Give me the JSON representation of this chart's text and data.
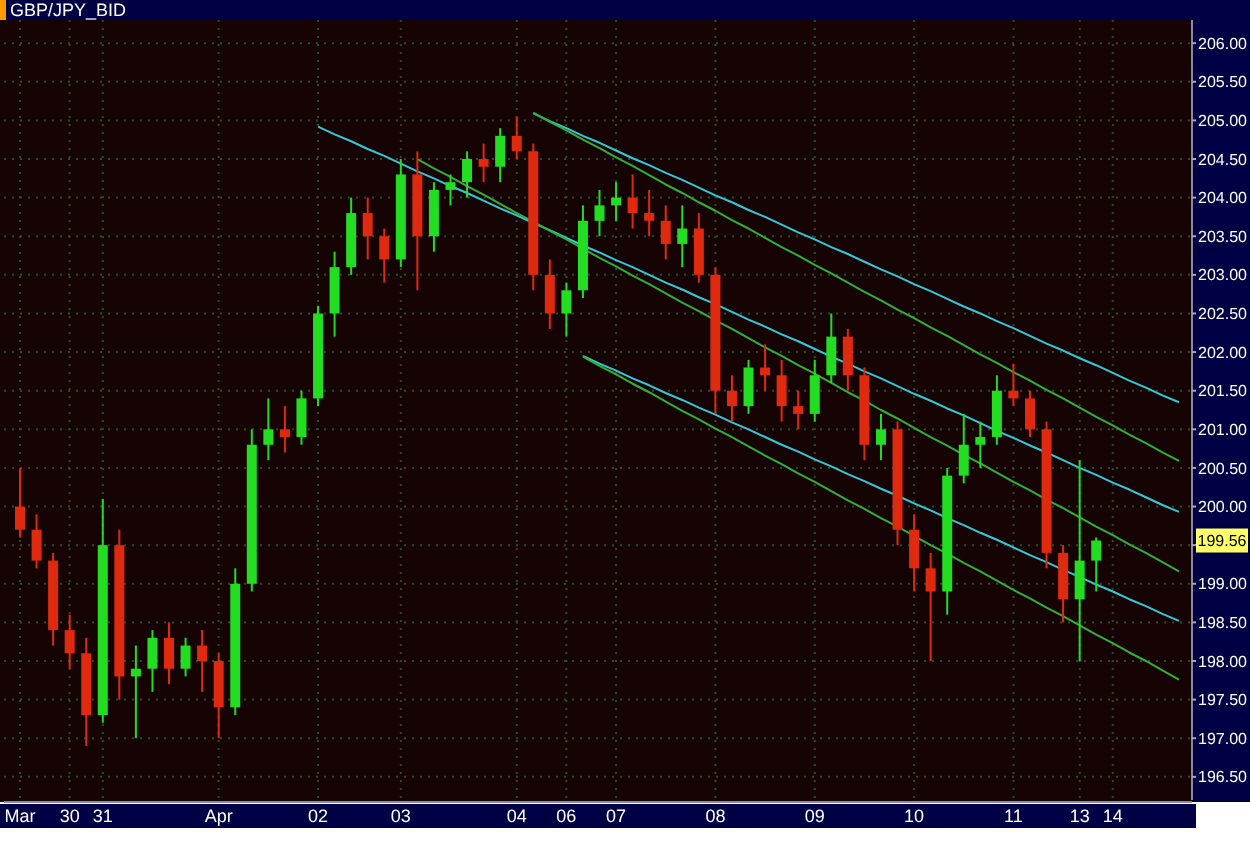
{
  "chart_data": {
    "type": "candlestick",
    "title": "GBP/JPY_BID",
    "categories": [
      "Mar",
      null,
      null,
      "30",
      null,
      "31",
      null,
      null,
      null,
      null,
      null,
      null,
      "Apr",
      null,
      null,
      null,
      null,
      null,
      "02",
      null,
      null,
      null,
      null,
      "03",
      null,
      null,
      null,
      null,
      null,
      null,
      "04",
      null,
      null,
      "06",
      null,
      null,
      "07",
      null,
      null,
      null,
      null,
      null,
      "08",
      null,
      null,
      null,
      null,
      null,
      "09",
      null,
      null,
      null,
      null,
      null,
      "10",
      null,
      null,
      null,
      null,
      null,
      "11",
      null,
      null,
      null,
      "13",
      null,
      "14",
      null,
      null,
      null,
      null
    ],
    "colors": [
      "#e02a10",
      "#e02a10",
      "#e02a10",
      "#e02a10",
      "#e02a10",
      "#22dd22",
      "#e02a10",
      "#22dd22",
      "#22dd22",
      "#e02a10",
      "#22dd22",
      "#e02a10",
      "#e02a10",
      "#22dd22",
      "#22dd22",
      "#22dd22",
      "#e02a10",
      "#22dd22",
      "#22dd22",
      "#22dd22",
      "#22dd22",
      "#e02a10",
      "#e02a10",
      "#22dd22",
      "#e02a10",
      "#22dd22",
      "#22dd22",
      "#22dd22",
      "#e02a10",
      "#22dd22",
      "#e02a10",
      "#e02a10",
      "#e02a10",
      "#22dd22",
      "#22dd22",
      "#22dd22",
      "#22dd22",
      "#e02a10",
      "#e02a10",
      "#e02a10",
      "#22dd22",
      "#e02a10",
      "#e02a10",
      "#e02a10",
      "#22dd22",
      "#e02a10",
      "#e02a10",
      "#e02a10",
      "#22dd22",
      "#22dd22",
      "#e02a10",
      "#e02a10",
      "#22dd22",
      "#e02a10",
      "#e02a10",
      "#e02a10",
      "#22dd22",
      "#22dd22",
      "#22dd22",
      "#22dd22",
      "#e02a10",
      "#e02a10",
      "#e02a10",
      "#e02a10",
      "#22dd22",
      "#22dd22",
      null,
      null,
      null,
      null,
      null
    ],
    "ohlc": [
      [
        200.0,
        200.5,
        199.6,
        199.7
      ],
      [
        199.7,
        199.9,
        199.2,
        199.3
      ],
      [
        199.3,
        199.4,
        198.2,
        198.4
      ],
      [
        198.4,
        198.6,
        197.9,
        198.1
      ],
      [
        198.1,
        198.3,
        196.9,
        197.3
      ],
      [
        197.3,
        200.1,
        197.2,
        199.5
      ],
      [
        199.5,
        199.7,
        197.5,
        197.8
      ],
      [
        197.8,
        198.2,
        197.0,
        197.9
      ],
      [
        197.9,
        198.4,
        197.6,
        198.3
      ],
      [
        198.3,
        198.5,
        197.7,
        197.9
      ],
      [
        197.9,
        198.3,
        197.8,
        198.2
      ],
      [
        198.2,
        198.4,
        197.6,
        198.0
      ],
      [
        198.0,
        198.1,
        197.0,
        197.4
      ],
      [
        197.4,
        199.2,
        197.3,
        199.0
      ],
      [
        199.0,
        201.0,
        198.9,
        200.8
      ],
      [
        200.8,
        201.4,
        200.6,
        201.0
      ],
      [
        201.0,
        201.3,
        200.7,
        200.9
      ],
      [
        200.9,
        201.5,
        200.8,
        201.4
      ],
      [
        201.4,
        202.6,
        201.3,
        202.5
      ],
      [
        202.5,
        203.3,
        202.2,
        203.1
      ],
      [
        203.1,
        204.0,
        203.0,
        203.8
      ],
      [
        203.8,
        204.0,
        203.2,
        203.5
      ],
      [
        203.5,
        203.6,
        202.9,
        203.2
      ],
      [
        203.2,
        204.5,
        203.1,
        204.3
      ],
      [
        204.3,
        204.6,
        202.8,
        203.5
      ],
      [
        203.5,
        204.2,
        203.3,
        204.1
      ],
      [
        204.1,
        204.3,
        203.9,
        204.2
      ],
      [
        204.2,
        204.6,
        204.0,
        204.5
      ],
      [
        204.5,
        204.7,
        204.2,
        204.4
      ],
      [
        204.4,
        204.9,
        204.2,
        204.8
      ],
      [
        204.8,
        205.05,
        204.5,
        204.6
      ],
      [
        204.6,
        204.7,
        202.8,
        203.0
      ],
      [
        203.0,
        203.2,
        202.3,
        202.5
      ],
      [
        202.5,
        202.9,
        202.2,
        202.8
      ],
      [
        202.8,
        203.9,
        202.7,
        203.7
      ],
      [
        203.7,
        204.1,
        203.5,
        203.9
      ],
      [
        203.9,
        204.2,
        203.7,
        204.0
      ],
      [
        204.0,
        204.3,
        203.6,
        203.8
      ],
      [
        203.8,
        204.1,
        203.5,
        203.7
      ],
      [
        203.7,
        203.9,
        203.2,
        203.4
      ],
      [
        203.4,
        203.9,
        203.1,
        203.6
      ],
      [
        203.6,
        203.8,
        202.9,
        203.0
      ],
      [
        203.0,
        203.1,
        201.2,
        201.5
      ],
      [
        201.5,
        201.7,
        201.1,
        201.3
      ],
      [
        201.3,
        201.9,
        201.2,
        201.8
      ],
      [
        201.8,
        202.1,
        201.5,
        201.7
      ],
      [
        201.7,
        201.9,
        201.1,
        201.3
      ],
      [
        201.3,
        201.5,
        201.0,
        201.2
      ],
      [
        201.2,
        201.9,
        201.1,
        201.7
      ],
      [
        201.7,
        202.5,
        201.6,
        202.2
      ],
      [
        202.2,
        202.3,
        201.5,
        201.7
      ],
      [
        201.7,
        201.8,
        200.6,
        200.8
      ],
      [
        200.8,
        201.2,
        200.6,
        201.0
      ],
      [
        201.0,
        201.1,
        199.5,
        199.7
      ],
      [
        199.7,
        199.9,
        198.9,
        199.2
      ],
      [
        199.2,
        199.4,
        198.0,
        198.9
      ],
      [
        198.9,
        200.5,
        198.6,
        200.4
      ],
      [
        200.4,
        201.2,
        200.3,
        200.8
      ],
      [
        200.8,
        201.1,
        200.5,
        200.9
      ],
      [
        200.9,
        201.7,
        200.8,
        201.5
      ],
      [
        201.5,
        201.85,
        201.3,
        201.4
      ],
      [
        201.4,
        201.5,
        200.9,
        201.0
      ],
      [
        201.0,
        201.1,
        199.2,
        199.4
      ],
      [
        199.4,
        199.5,
        198.5,
        198.8
      ],
      [
        198.8,
        200.6,
        198.0,
        199.3
      ],
      [
        199.3,
        199.6,
        198.9,
        199.56
      ],
      null,
      null,
      null,
      null,
      null
    ],
    "series": [
      {
        "type": "line",
        "color": "#33c8d8",
        "values": [
          null,
          null,
          null,
          null,
          null,
          null,
          null,
          null,
          null,
          null,
          null,
          null,
          null,
          null,
          null,
          null,
          null,
          null,
          null,
          null,
          null,
          null,
          null,
          null,
          null,
          null,
          null,
          null,
          null,
          null,
          null,
          205.09,
          204.99,
          204.9,
          204.8,
          204.71,
          204.61,
          204.51,
          204.42,
          204.32,
          204.23,
          204.13,
          204.03,
          203.94,
          203.84,
          203.75,
          203.65,
          203.55,
          203.46,
          203.36,
          203.27,
          203.17,
          203.07,
          202.98,
          202.88,
          202.79,
          202.69,
          202.59,
          202.5,
          202.4,
          202.31,
          202.21,
          202.11,
          202.02,
          201.92,
          201.83,
          201.73,
          201.63,
          201.54,
          201.44,
          201.35
        ]
      },
      {
        "type": "line",
        "color": "#33b033",
        "values": [
          null,
          null,
          null,
          null,
          null,
          null,
          null,
          null,
          null,
          null,
          null,
          null,
          null,
          null,
          null,
          null,
          null,
          null,
          null,
          null,
          null,
          null,
          null,
          null,
          null,
          null,
          null,
          null,
          null,
          null,
          null,
          205.1,
          204.98,
          204.87,
          204.75,
          204.64,
          204.52,
          204.41,
          204.29,
          204.17,
          204.06,
          203.94,
          203.83,
          203.71,
          203.6,
          203.48,
          203.36,
          203.25,
          203.13,
          203.02,
          202.9,
          202.78,
          202.67,
          202.55,
          202.44,
          202.32,
          202.21,
          202.09,
          201.97,
          201.86,
          201.74,
          201.63,
          201.51,
          201.4,
          201.28,
          201.16,
          201.05,
          200.93,
          200.82,
          200.7,
          200.59
        ]
      },
      {
        "type": "line",
        "color": "#33c8d8",
        "values": [
          null,
          null,
          null,
          null,
          null,
          null,
          null,
          null,
          null,
          null,
          null,
          null,
          null,
          null,
          null,
          null,
          null,
          null,
          204.92,
          204.82,
          204.73,
          204.63,
          204.54,
          204.44,
          204.34,
          204.25,
          204.15,
          204.06,
          203.96,
          203.86,
          203.77,
          203.67,
          203.58,
          203.48,
          203.38,
          203.29,
          203.19,
          203.1,
          203.0,
          202.9,
          202.81,
          202.71,
          202.62,
          202.52,
          202.42,
          202.33,
          202.23,
          202.14,
          202.04,
          201.94,
          201.85,
          201.75,
          201.66,
          201.56,
          201.46,
          201.37,
          201.27,
          201.18,
          201.08,
          200.98,
          200.89,
          200.79,
          200.7,
          200.6,
          200.5,
          200.41,
          200.31,
          200.22,
          200.12,
          200.02,
          199.93
        ]
      },
      {
        "type": "line",
        "color": "#33b033",
        "values": [
          null,
          null,
          null,
          null,
          null,
          null,
          null,
          null,
          null,
          null,
          null,
          null,
          null,
          null,
          null,
          null,
          null,
          null,
          null,
          null,
          null,
          null,
          null,
          null,
          204.5,
          204.38,
          204.27,
          204.15,
          204.04,
          203.92,
          203.8,
          203.69,
          203.57,
          203.46,
          203.34,
          203.22,
          203.11,
          202.99,
          202.88,
          202.76,
          202.64,
          202.53,
          202.41,
          202.3,
          202.18,
          202.06,
          201.95,
          201.83,
          201.72,
          201.6,
          201.48,
          201.37,
          201.25,
          201.14,
          201.02,
          200.9,
          200.79,
          200.67,
          200.56,
          200.44,
          200.32,
          200.21,
          200.09,
          199.98,
          199.86,
          199.74,
          199.63,
          199.51,
          199.4,
          199.28,
          199.16
        ]
      },
      {
        "type": "line",
        "color": "#33c8d8",
        "values": [
          null,
          null,
          null,
          null,
          null,
          null,
          null,
          null,
          null,
          null,
          null,
          null,
          null,
          null,
          null,
          null,
          null,
          null,
          null,
          null,
          null,
          null,
          null,
          null,
          null,
          null,
          null,
          null,
          null,
          null,
          null,
          null,
          null,
          null,
          201.95,
          201.85,
          201.76,
          201.66,
          201.57,
          201.47,
          201.38,
          201.28,
          201.19,
          201.09,
          201.0,
          200.9,
          200.8,
          200.71,
          200.61,
          200.52,
          200.42,
          200.33,
          200.23,
          200.14,
          200.04,
          199.95,
          199.85,
          199.76,
          199.66,
          199.57,
          199.47,
          199.37,
          199.28,
          199.18,
          199.09,
          198.99,
          198.9,
          198.8,
          198.71,
          198.61,
          198.52
        ]
      },
      {
        "type": "line",
        "color": "#33b033",
        "values": [
          null,
          null,
          null,
          null,
          null,
          null,
          null,
          null,
          null,
          null,
          null,
          null,
          null,
          null,
          null,
          null,
          null,
          null,
          null,
          null,
          null,
          null,
          null,
          null,
          null,
          null,
          null,
          null,
          null,
          null,
          null,
          null,
          null,
          null,
          201.94,
          201.82,
          201.71,
          201.59,
          201.48,
          201.36,
          201.24,
          201.13,
          201.01,
          200.9,
          200.78,
          200.66,
          200.55,
          200.43,
          200.32,
          200.2,
          200.08,
          199.97,
          199.85,
          199.74,
          199.62,
          199.5,
          199.39,
          199.27,
          199.16,
          199.04,
          198.92,
          198.81,
          198.69,
          198.58,
          198.46,
          198.34,
          198.23,
          198.11,
          198.0,
          197.88,
          197.76
        ]
      }
    ],
    "annotations": [
      "199.56"
    ],
    "ylim": [
      196.2,
      206.3
    ],
    "yticks": [
      {
        "value": 196.5,
        "label": "196.50"
      },
      {
        "value": 197,
        "label": "197.00"
      },
      {
        "value": 197.5,
        "label": "197.50"
      },
      {
        "value": 198,
        "label": "198.00"
      },
      {
        "value": 198.5,
        "label": "198.50"
      },
      {
        "value": 199,
        "label": "199.00"
      },
      {
        "value": 199.5,
        "label": null
      },
      {
        "value": 200,
        "label": "200.00"
      },
      {
        "value": 200.5,
        "label": "200.50"
      },
      {
        "value": 201,
        "label": "201.00"
      },
      {
        "value": 201.5,
        "label": "201.50"
      },
      {
        "value": 202,
        "label": "202.00"
      },
      {
        "value": 202.5,
        "label": "202.50"
      },
      {
        "value": 203,
        "label": "203.00"
      },
      {
        "value": 203.5,
        "label": "203.50"
      },
      {
        "value": 204,
        "label": "204.00"
      },
      {
        "value": 204.5,
        "label": "204.50"
      },
      {
        "value": 205,
        "label": "205.00"
      },
      {
        "value": 205.5,
        "label": "205.50"
      },
      {
        "value": 206,
        "label": "206.00"
      }
    ],
    "grid": true
  }
}
